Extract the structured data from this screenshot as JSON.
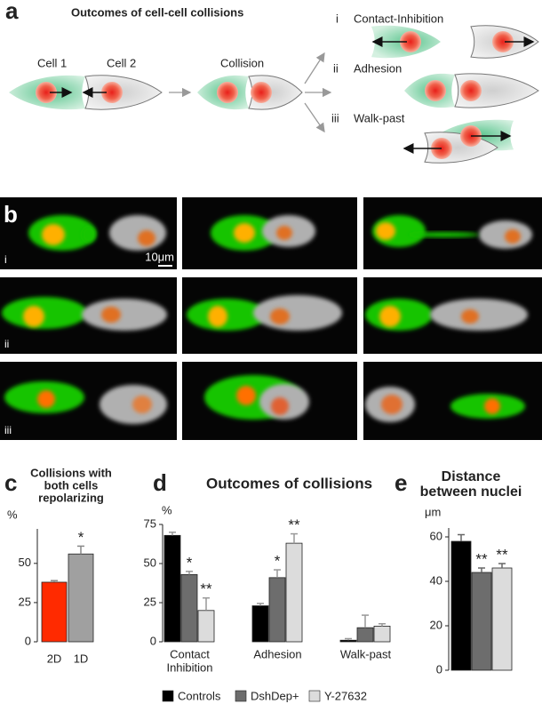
{
  "panel_a": {
    "label": "a",
    "title": "Outcomes of cell-cell collisions",
    "cell_1": "Cell 1",
    "cell_2": "Cell 2",
    "collision": "Collision",
    "outcomes": [
      {
        "numeral": "i",
        "name": "Contact-Inhibition"
      },
      {
        "numeral": "ii",
        "name": "Adhesion"
      },
      {
        "numeral": "iii",
        "name": "Walk-past"
      }
    ]
  },
  "panel_b": {
    "label": "b",
    "rows": [
      "i",
      "ii",
      "iii"
    ],
    "scale_bar": "10μm"
  },
  "chart_data": [
    {
      "type": "bar",
      "panel": "c",
      "title": [
        "Collisions with",
        "both cells",
        "repolarizing"
      ],
      "y_unit": "%",
      "categories": [
        "2D",
        "1D"
      ],
      "values": [
        38,
        56
      ],
      "errors": [
        1,
        5
      ],
      "colors": [
        "#ff2a00",
        "#a0a0a0"
      ],
      "significance": [
        null,
        "*"
      ],
      "ylim": [
        0,
        72
      ],
      "yticks": [
        0,
        25,
        50
      ]
    },
    {
      "type": "bar",
      "panel": "d",
      "title": "Outcomes of collisions",
      "y_unit": "%",
      "categories": [
        "Contact\nInhibition",
        "Adhesion",
        "Walk-past"
      ],
      "series": [
        {
          "name": "Controls",
          "color": "#000000",
          "values": [
            68,
            23,
            1
          ],
          "errors": [
            2,
            1.5,
            1
          ]
        },
        {
          "name": "DshDep+",
          "color": "#6d6d6d",
          "values": [
            43,
            41,
            9
          ],
          "errors": [
            2,
            5,
            8
          ],
          "significance": [
            "*",
            "*",
            null
          ]
        },
        {
          "name": "Y-27632",
          "color": "#dcdcdc",
          "values": [
            20,
            63,
            10
          ],
          "errors": [
            8,
            6,
            1.5
          ],
          "significance": [
            "**",
            "**",
            null
          ]
        }
      ],
      "ylim": [
        0,
        75
      ],
      "yticks": [
        0,
        25,
        50,
        75
      ]
    },
    {
      "type": "bar",
      "panel": "e",
      "title": [
        "Distance",
        "between nuclei"
      ],
      "y_unit": "μm",
      "values": [
        58,
        44,
        46
      ],
      "errors": [
        3,
        2,
        2
      ],
      "colors": [
        "#000000",
        "#6d6d6d",
        "#dcdcdc"
      ],
      "significance": [
        null,
        "**",
        "**"
      ],
      "ylim": [
        0,
        64
      ],
      "yticks": [
        0,
        20,
        40,
        60
      ]
    }
  ]
}
